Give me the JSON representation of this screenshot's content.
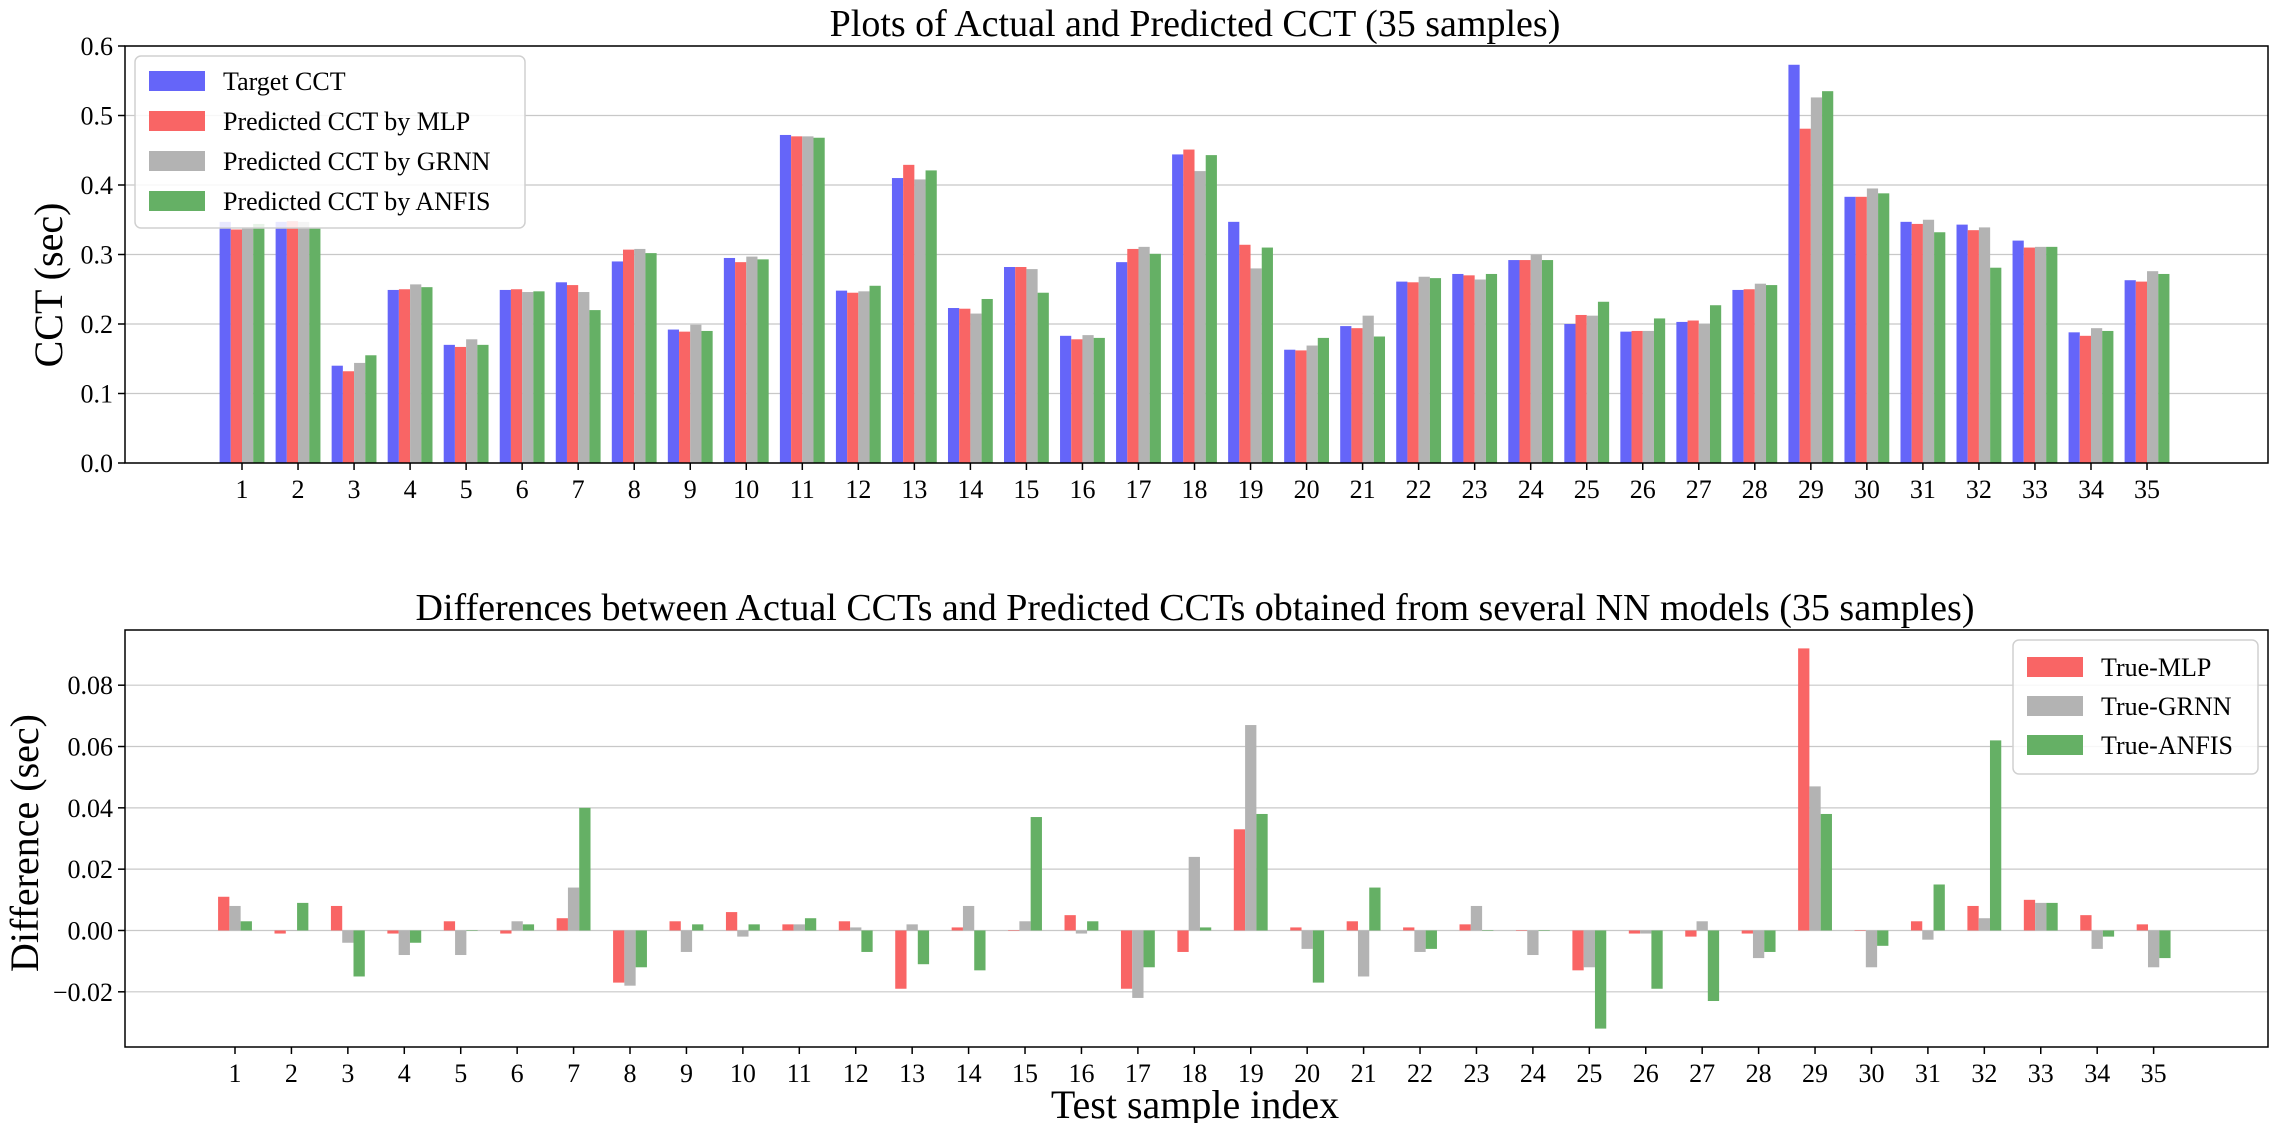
{
  "colors": {
    "target": "#6565F9",
    "mlp": "#F96565",
    "grnn": "#B3B3B3",
    "anfis": "#65B065",
    "grid": "#C8C8C8",
    "axes": "#000000"
  },
  "chart_data": [
    {
      "type": "bar",
      "title": "Plots of Actual and Predicted CCT (35 samples)",
      "xlabel": "",
      "ylabel": "CCT (sec)",
      "ylim": [
        0,
        0.6
      ],
      "yticks": [
        "0.0",
        "0.1",
        "0.2",
        "0.3",
        "0.4",
        "0.5",
        "0.6"
      ],
      "grid": "y",
      "legend_position": "upper-left",
      "categories": [
        "1",
        "2",
        "3",
        "4",
        "5",
        "6",
        "7",
        "8",
        "9",
        "10",
        "11",
        "12",
        "13",
        "14",
        "15",
        "16",
        "17",
        "18",
        "19",
        "20",
        "21",
        "22",
        "23",
        "24",
        "25",
        "26",
        "27",
        "28",
        "29",
        "30",
        "31",
        "32",
        "33",
        "34",
        "35"
      ],
      "series": [
        {
          "name": "Target CCT",
          "color_key": "target",
          "values": [
            0.347,
            0.347,
            0.14,
            0.249,
            0.17,
            0.249,
            0.26,
            0.29,
            0.192,
            0.295,
            0.472,
            0.248,
            0.41,
            0.223,
            0.282,
            0.183,
            0.289,
            0.444,
            0.347,
            0.163,
            0.197,
            0.261,
            0.272,
            0.292,
            0.2,
            0.189,
            0.203,
            0.249,
            0.573,
            0.383,
            0.347,
            0.343,
            0.32,
            0.188,
            0.263
          ]
        },
        {
          "name": "Predicted CCT by MLP",
          "color_key": "mlp",
          "values": [
            0.336,
            0.348,
            0.132,
            0.25,
            0.167,
            0.25,
            0.256,
            0.307,
            0.189,
            0.289,
            0.47,
            0.245,
            0.429,
            0.222,
            0.282,
            0.178,
            0.308,
            0.451,
            0.314,
            0.162,
            0.194,
            0.26,
            0.27,
            0.292,
            0.213,
            0.19,
            0.205,
            0.25,
            0.481,
            0.383,
            0.344,
            0.335,
            0.31,
            0.183,
            0.261
          ]
        },
        {
          "name": "Predicted CCT by GRNN",
          "color_key": "grnn",
          "values": [
            0.339,
            0.347,
            0.144,
            0.257,
            0.178,
            0.246,
            0.246,
            0.308,
            0.199,
            0.297,
            0.47,
            0.247,
            0.408,
            0.215,
            0.279,
            0.184,
            0.311,
            0.42,
            0.28,
            0.169,
            0.212,
            0.268,
            0.264,
            0.3,
            0.212,
            0.19,
            0.2,
            0.258,
            0.526,
            0.395,
            0.35,
            0.339,
            0.311,
            0.194,
            0.276
          ]
        },
        {
          "name": "Predicted CCT by ANFIS",
          "color_key": "anfis",
          "values": [
            0.344,
            0.338,
            0.155,
            0.253,
            0.17,
            0.247,
            0.22,
            0.302,
            0.19,
            0.293,
            0.468,
            0.255,
            0.421,
            0.236,
            0.245,
            0.18,
            0.301,
            0.443,
            0.31,
            0.18,
            0.182,
            0.266,
            0.272,
            0.292,
            0.232,
            0.208,
            0.227,
            0.256,
            0.535,
            0.388,
            0.332,
            0.281,
            0.311,
            0.19,
            0.272
          ]
        }
      ]
    },
    {
      "type": "bar",
      "title": "Differences between Actual CCTs and Predicted CCTs obtained from several NN models (35 samples)",
      "xlabel": "Test sample index",
      "ylabel": "Difference (sec)",
      "ylim": [
        -0.038,
        0.098
      ],
      "yticks": [
        "−0.02",
        "0.00",
        "0.02",
        "0.04",
        "0.06",
        "0.08"
      ],
      "grid": "y",
      "legend_position": "upper-right",
      "categories": [
        "1",
        "2",
        "3",
        "4",
        "5",
        "6",
        "7",
        "8",
        "9",
        "10",
        "11",
        "12",
        "13",
        "14",
        "15",
        "16",
        "17",
        "18",
        "19",
        "20",
        "21",
        "22",
        "23",
        "24",
        "25",
        "26",
        "27",
        "28",
        "29",
        "30",
        "31",
        "32",
        "33",
        "34",
        "35"
      ],
      "series": [
        {
          "name": "True-MLP",
          "color_key": "mlp",
          "values": [
            0.011,
            -0.001,
            0.008,
            -0.001,
            0.003,
            -0.001,
            0.004,
            -0.017,
            0.003,
            0.006,
            0.002,
            0.003,
            -0.019,
            0.001,
            0.0,
            0.005,
            -0.019,
            -0.007,
            0.033,
            0.001,
            0.003,
            0.001,
            0.002,
            0.0,
            -0.013,
            -0.001,
            -0.002,
            -0.001,
            0.092,
            0.0,
            0.003,
            0.008,
            0.01,
            0.005,
            0.002
          ]
        },
        {
          "name": "True-GRNN",
          "color_key": "grnn",
          "values": [
            0.008,
            0.0,
            -0.004,
            -0.008,
            -0.008,
            0.003,
            0.014,
            -0.018,
            -0.007,
            -0.002,
            0.002,
            0.001,
            0.002,
            0.008,
            0.003,
            -0.001,
            -0.022,
            0.024,
            0.067,
            -0.006,
            -0.015,
            -0.007,
            0.008,
            -0.008,
            -0.012,
            -0.001,
            0.003,
            -0.009,
            0.047,
            -0.012,
            -0.003,
            0.004,
            0.009,
            -0.006,
            -0.012
          ]
        },
        {
          "name": "True-ANFIS",
          "color_key": "anfis",
          "values": [
            0.003,
            0.009,
            -0.015,
            -0.004,
            0.0,
            0.002,
            0.04,
            -0.012,
            0.002,
            0.002,
            0.004,
            -0.007,
            -0.011,
            -0.013,
            0.037,
            0.003,
            -0.012,
            0.001,
            0.038,
            -0.017,
            0.014,
            -0.006,
            0.0,
            0.0,
            -0.032,
            -0.019,
            -0.023,
            -0.007,
            0.038,
            -0.005,
            0.015,
            0.062,
            0.009,
            -0.002,
            -0.009
          ]
        }
      ]
    }
  ]
}
